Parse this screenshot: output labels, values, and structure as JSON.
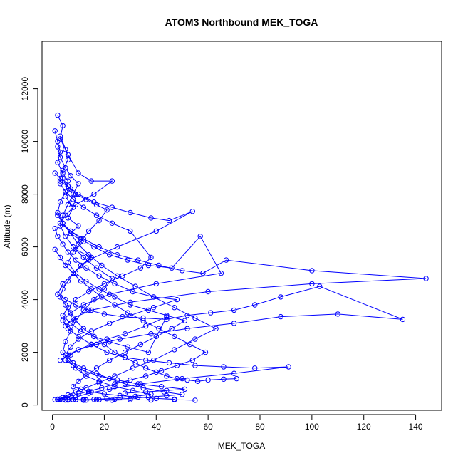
{
  "chart_data": {
    "type": "line",
    "title": "ATOM3 Northbound MEK_TOGA",
    "xlabel": "MEK_TOGA",
    "ylabel": "Altitude (m)",
    "xlim": [
      -4,
      150
    ],
    "ylim": [
      -200,
      13800
    ],
    "xticks": [
      0,
      20,
      40,
      60,
      80,
      100,
      120,
      140
    ],
    "yticks": [
      0,
      2000,
      4000,
      6000,
      8000,
      10000,
      12000
    ],
    "grid": false,
    "legend": "none",
    "markers": "open-circle",
    "color": "#0000ff",
    "series": [
      {
        "name": "",
        "x": [
          2,
          4,
          3,
          5,
          6,
          4,
          3,
          7,
          5,
          8,
          6,
          10,
          7,
          12,
          9,
          15,
          11,
          8,
          6,
          4,
          3,
          5,
          7,
          9,
          12,
          16,
          20,
          24,
          28,
          32,
          36,
          40,
          44,
          48,
          52,
          56,
          60,
          66,
          71
        ],
        "y": [
          11000,
          10600,
          10100,
          9700,
          9300,
          8900,
          8500,
          8200,
          7900,
          7500,
          7100,
          6800,
          6500,
          6200,
          5900,
          5600,
          5300,
          5000,
          4700,
          4400,
          4100,
          3800,
          3500,
          3200,
          2900,
          2600,
          2300,
          2000,
          1800,
          1600,
          1400,
          1250,
          1100,
          1000,
          950,
          900,
          950,
          980,
          1000
        ]
      },
      {
        "name": "",
        "x": [
          3,
          6,
          10,
          15,
          23,
          16,
          9,
          5,
          3,
          7,
          12,
          18,
          25,
          33,
          41,
          50,
          58,
          67,
          100,
          144,
          100,
          60,
          30,
          15,
          8,
          5
        ],
        "y": [
          10200,
          9500,
          8800,
          8500,
          8500,
          8000,
          7600,
          7200,
          6900,
          6600,
          6300,
          6000,
          5700,
          5500,
          5300,
          5100,
          5000,
          5500,
          5100,
          4800,
          4600,
          4300,
          3900,
          3600,
          3300,
          3000
        ]
      },
      {
        "name": "",
        "x": [
          1,
          3,
          6,
          10,
          16,
          23,
          30,
          38,
          45,
          54,
          40,
          25,
          14,
          8,
          4,
          2,
          5,
          9,
          14,
          20,
          27,
          35,
          44,
          52,
          61,
          70,
          78,
          88,
          103,
          135,
          110,
          88,
          70,
          52,
          38,
          26,
          17,
          10,
          6,
          3
        ],
        "y": [
          8800,
          8600,
          8300,
          8000,
          7700,
          7500,
          7300,
          7100,
          7000,
          7350,
          6600,
          6000,
          5500,
          5000,
          4600,
          4200,
          4000,
          3800,
          3600,
          3450,
          3350,
          3300,
          3250,
          3400,
          3500,
          3600,
          3800,
          4100,
          4500,
          3250,
          3450,
          3350,
          3100,
          2900,
          2700,
          2500,
          2300,
          2100,
          1900,
          1700
        ]
      },
      {
        "name": "",
        "x": [
          2,
          4,
          7,
          11,
          16,
          22,
          29,
          37,
          46,
          57,
          65,
          40,
          22,
          12,
          7,
          4,
          6,
          10,
          15,
          21,
          28,
          36,
          45,
          55,
          66,
          78,
          91,
          70,
          50,
          34,
          22,
          14,
          9,
          6,
          8,
          12,
          17,
          23,
          30,
          38,
          47,
          55
        ],
        "y": [
          7200,
          6900,
          6600,
          6300,
          6000,
          5700,
          5500,
          5300,
          5200,
          6400,
          5000,
          4600,
          4200,
          3800,
          3500,
          3200,
          2900,
          2600,
          2300,
          2000,
          1800,
          1700,
          1600,
          1500,
          1450,
          1400,
          1450,
          1200,
          1000,
          800,
          600,
          450,
          300,
          200,
          200,
          180,
          200,
          180,
          200,
          190,
          200,
          180
        ]
      },
      {
        "name": "",
        "x": [
          1,
          2,
          4,
          6,
          9,
          13,
          18,
          24,
          31,
          39,
          48,
          39,
          30,
          22,
          15,
          10,
          7,
          5,
          8,
          12,
          17,
          22,
          28,
          35,
          43,
          50,
          44,
          37,
          30,
          24,
          18,
          13,
          9,
          6,
          4,
          3,
          5,
          8,
          12,
          17
        ],
        "y": [
          6700,
          6400,
          6100,
          5800,
          5500,
          5200,
          4900,
          4600,
          4300,
          4100,
          4000,
          3700,
          3400,
          3100,
          2800,
          2500,
          2200,
          1900,
          1600,
          1400,
          1200,
          1000,
          800,
          650,
          500,
          400,
          350,
          300,
          250,
          220,
          200,
          190,
          200,
          210,
          200,
          220,
          190,
          200,
          210,
          200
        ]
      },
      {
        "name": "",
        "x": [
          3,
          5,
          8,
          12,
          17,
          23,
          30,
          38,
          34,
          27,
          20,
          14,
          9,
          6,
          4,
          7,
          11,
          16,
          22,
          29,
          37,
          44,
          36,
          28,
          21,
          15,
          10,
          7,
          5,
          8,
          12,
          18,
          25,
          33,
          42,
          51,
          44,
          36,
          28
        ],
        "y": [
          8400,
          8100,
          7800,
          7500,
          7200,
          6900,
          6600,
          5600,
          5200,
          4900,
          4600,
          4300,
          4000,
          3700,
          3400,
          3100,
          2800,
          2600,
          2400,
          2200,
          2000,
          3350,
          3000,
          2700,
          2500,
          2300,
          2100,
          1900,
          1700,
          1500,
          1300,
          1100,
          950,
          800,
          700,
          600,
          550,
          500,
          450
        ]
      },
      {
        "name": "",
        "x": [
          1,
          2,
          3,
          2,
          4,
          6,
          5,
          3,
          2,
          4,
          7,
          10,
          14,
          19,
          25,
          32,
          39,
          47,
          55,
          63,
          55,
          47,
          39,
          31,
          24,
          18,
          13,
          9,
          6,
          4,
          2,
          1
        ],
        "y": [
          10400,
          10000,
          9600,
          9200,
          8800,
          8500,
          8100,
          7700,
          7300,
          6900,
          6500,
          6100,
          5700,
          5300,
          4900,
          4500,
          4100,
          3700,
          3300,
          2900,
          2500,
          2100,
          1700,
          1400,
          1100,
          850,
          650,
          500,
          380,
          280,
          220,
          200
        ]
      },
      {
        "name": "",
        "x": [
          2,
          3,
          5,
          7,
          10,
          8,
          6,
          4,
          3,
          5,
          8,
          12,
          17,
          23,
          20,
          16,
          12,
          9,
          7,
          5,
          4,
          6,
          9,
          13,
          18,
          24,
          31,
          38,
          32,
          26,
          21,
          16,
          12,
          9
        ],
        "y": [
          9800,
          9400,
          9000,
          8700,
          8400,
          8000,
          7600,
          7200,
          6800,
          6400,
          6000,
          5600,
          5200,
          4800,
          4400,
          4000,
          3600,
          3200,
          2800,
          2400,
          2000,
          1700,
          1400,
          1100,
          900,
          700,
          550,
          400,
          330,
          280,
          240,
          210,
          200,
          200
        ]
      },
      {
        "name": "",
        "x": [
          4,
          6,
          9,
          13,
          17,
          21,
          18,
          14,
          11,
          8,
          6,
          9,
          13,
          18,
          24,
          30,
          37,
          44,
          51,
          46,
          40,
          34,
          28,
          22,
          17,
          13,
          10,
          8,
          11,
          15,
          20,
          26,
          33,
          40,
          47
        ],
        "y": [
          8600,
          8300,
          8000,
          7800,
          7600,
          7400,
          7000,
          6600,
          6200,
          5800,
          5400,
          5000,
          4700,
          4400,
          4100,
          3800,
          3600,
          3400,
          3200,
          2900,
          2600,
          2300,
          2000,
          1700,
          1400,
          1100,
          900,
          700,
          600,
          500,
          420,
          360,
          300,
          250,
          220
        ]
      },
      {
        "name": "",
        "x": [
          1,
          3,
          5,
          8,
          11,
          15,
          19,
          24,
          29,
          35,
          41,
          47,
          53,
          59,
          54,
          48,
          42,
          36,
          30,
          24,
          19,
          14,
          10,
          7,
          5,
          3,
          2,
          4,
          6,
          9,
          13,
          18
        ],
        "y": [
          5900,
          5600,
          5300,
          5000,
          4700,
          4400,
          4100,
          3800,
          3500,
          3200,
          2900,
          2600,
          2300,
          2000,
          1700,
          1500,
          1300,
          1100,
          950,
          800,
          650,
          520,
          420,
          340,
          280,
          230,
          200,
          200,
          190,
          200,
          190,
          200
        ]
      }
    ]
  }
}
